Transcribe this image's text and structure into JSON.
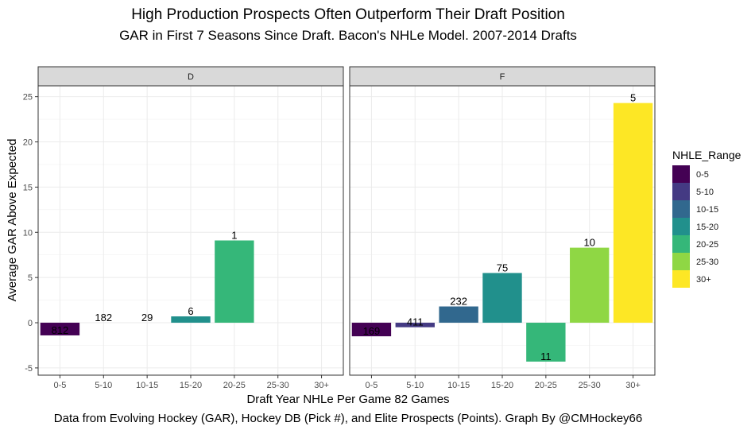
{
  "chart_data": {
    "type": "bar",
    "title": "High Production Prospects Often Outperform Their Draft Position",
    "subtitle": "GAR in First 7 Seasons Since Draft. Bacon's NHLe Model. 2007-2014 Drafts",
    "xlabel": "Draft Year NHLe Per Game 82 Games",
    "ylabel": "Average GAR Above Expected",
    "caption": "Data from Evolving Hockey (GAR), Hockey DB (Pick #), and Elite Prospects (Points). Graph By @CMHockey66",
    "categories": [
      "0-5",
      "5-10",
      "10-15",
      "15-20",
      "20-25",
      "25-30",
      "30+"
    ],
    "ylim": [
      -5.8,
      26.2
    ],
    "yticks": [
      -5,
      0,
      5,
      10,
      15,
      20,
      25
    ],
    "grid": true,
    "legend": {
      "title": "NHLE_Range",
      "position": "right",
      "entries": [
        "0-5",
        "5-10",
        "10-15",
        "15-20",
        "20-25",
        "25-30",
        "30+"
      ],
      "colors": [
        "#440154",
        "#443A83",
        "#31688E",
        "#21908C",
        "#35B779",
        "#8FD744",
        "#FDE725"
      ]
    },
    "facets": [
      {
        "label": "D",
        "values": [
          -1.4,
          0,
          0,
          0.7,
          9.1,
          null,
          null
        ],
        "counts": [
          "812",
          "182",
          "29",
          "6",
          "1",
          "",
          ""
        ]
      },
      {
        "label": "F",
        "values": [
          -1.5,
          -0.5,
          1.8,
          5.5,
          -4.3,
          8.3,
          24.3
        ],
        "counts": [
          "169",
          "411",
          "232",
          "75",
          "11",
          "10",
          "5"
        ]
      }
    ]
  }
}
